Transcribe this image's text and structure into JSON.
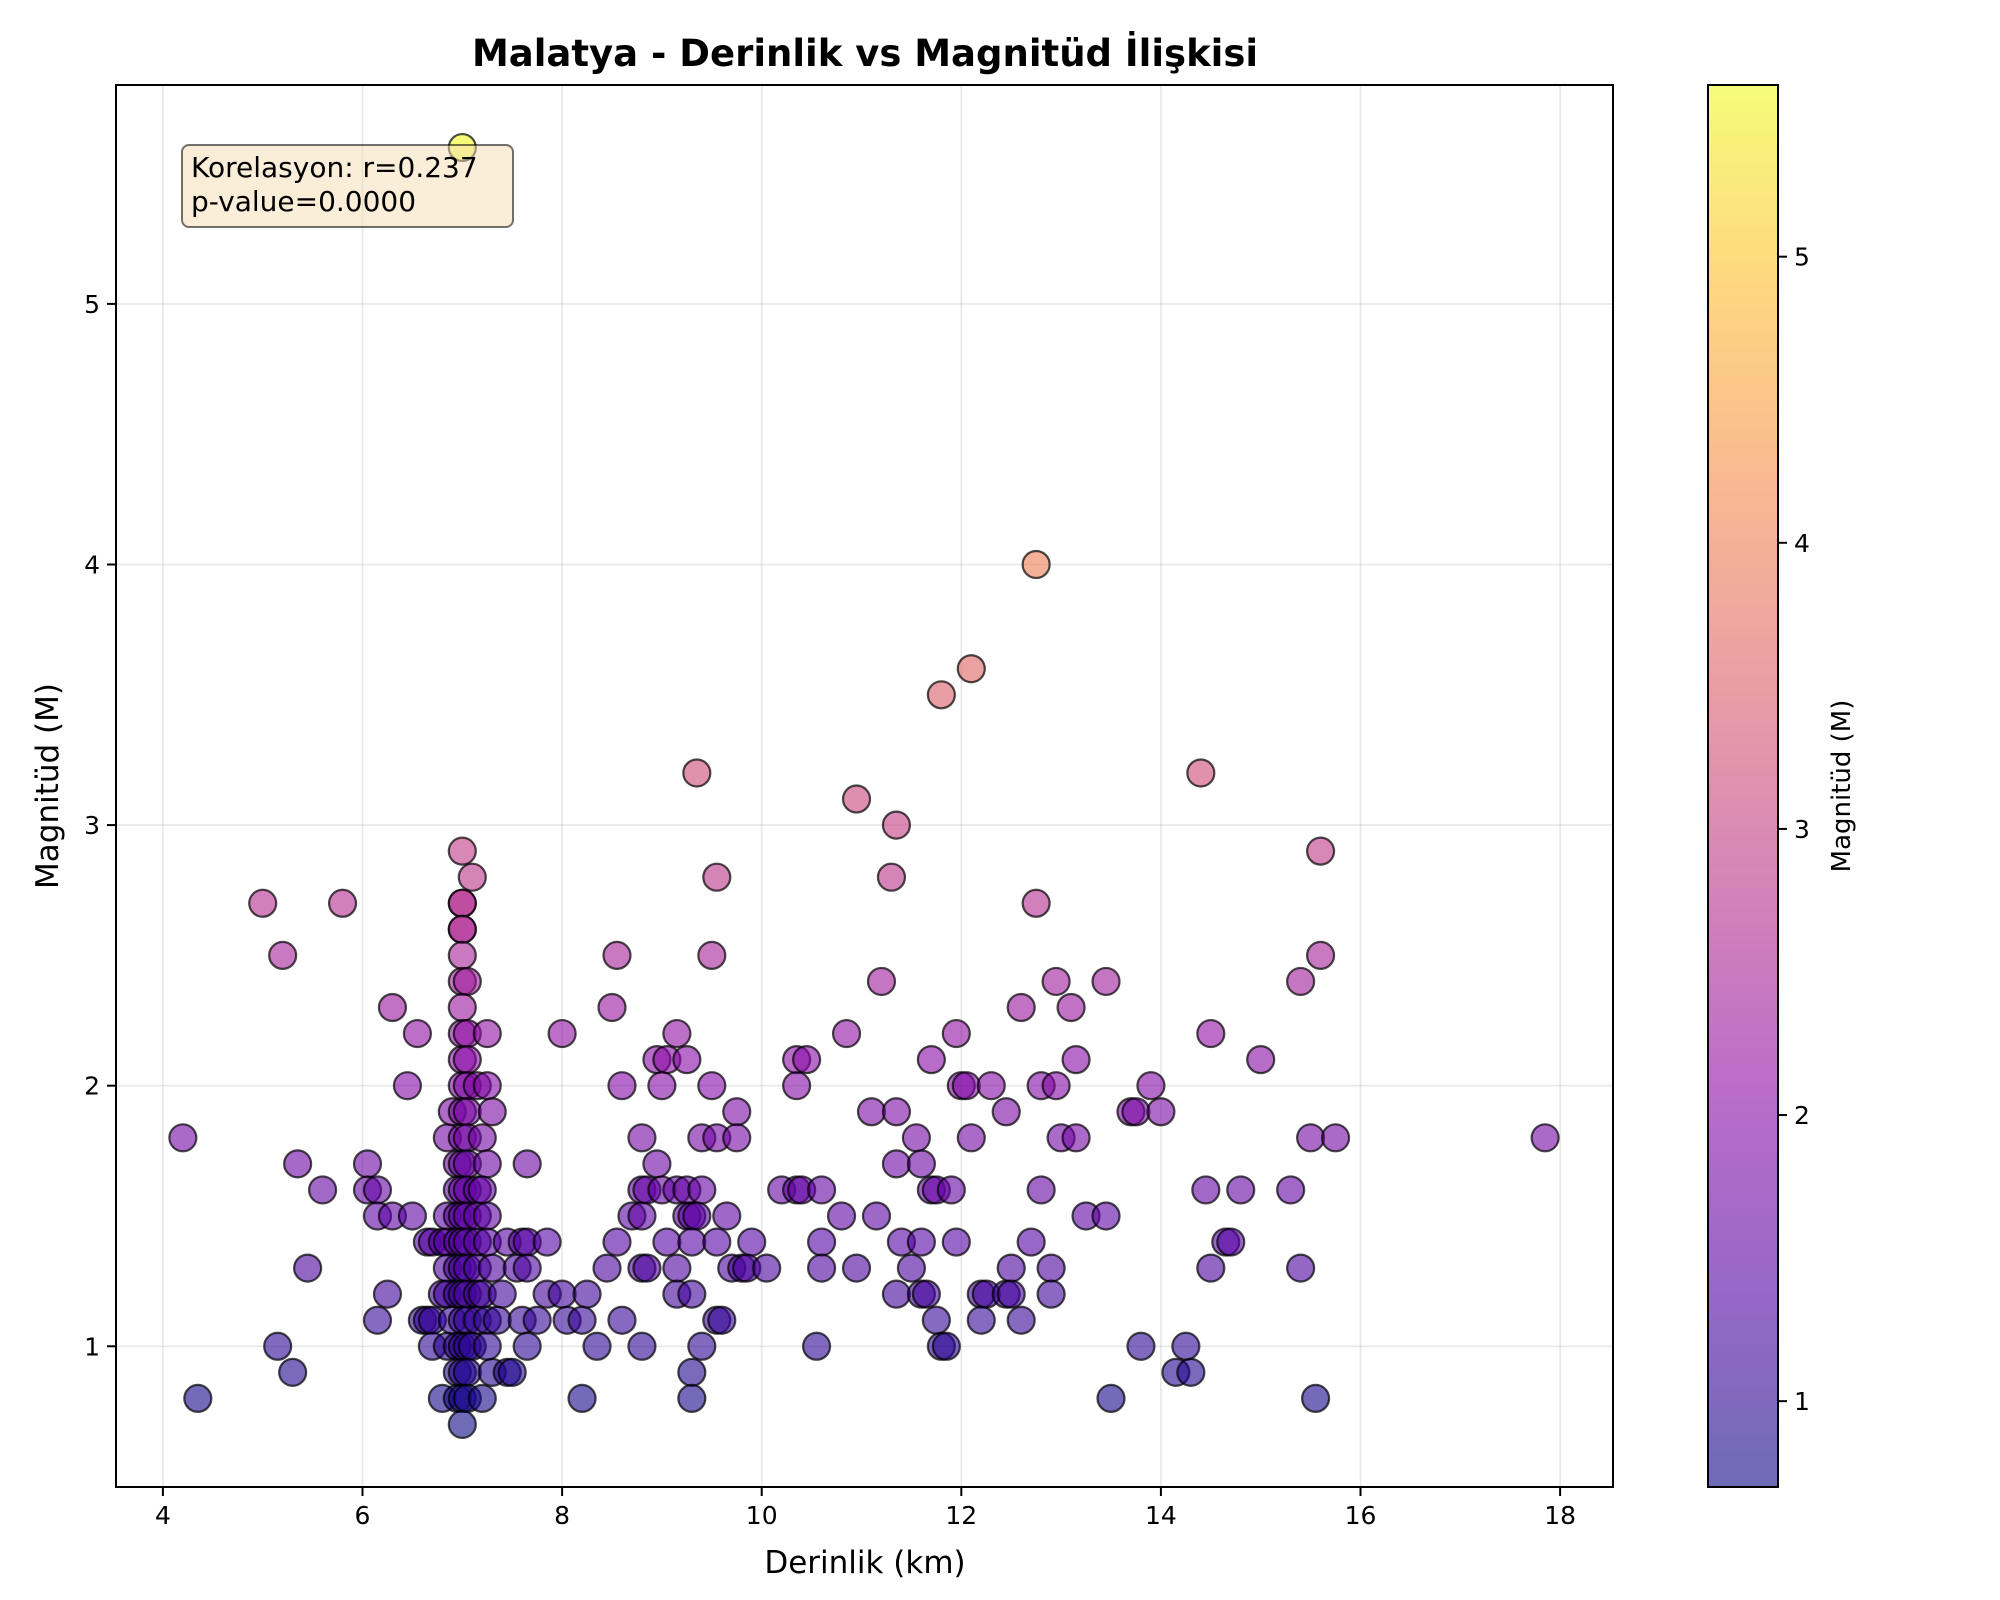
{
  "chart_data": {
    "type": "scatter",
    "title": "Malatya - Derinlik vs Magnitüd İlişkisi",
    "xlabel": "Derinlik (km)",
    "ylabel": "Magnitüd (M)",
    "xlim": [
      3.53,
      18.53
    ],
    "ylim": [
      0.46,
      5.84
    ],
    "xticks": [
      4,
      6,
      8,
      10,
      12,
      14,
      16,
      18
    ],
    "yticks": [
      1,
      2,
      3,
      4,
      5
    ],
    "grid": true,
    "colormap": "plasma",
    "color_by": "magnitude",
    "point_alpha": 0.6,
    "colorbar": {
      "label": "Magnitüd (M)",
      "range": [
        0.7,
        5.6
      ],
      "ticks": [
        1,
        2,
        3,
        4,
        5
      ]
    },
    "annotation": {
      "line1": "Korelasyon: r=0.237",
      "line2": "p-value=0.0000"
    },
    "points": [
      [
        7.0,
        5.6
      ],
      [
        12.75,
        4.0
      ],
      [
        12.1,
        3.6
      ],
      [
        11.8,
        3.5
      ],
      [
        9.35,
        3.2
      ],
      [
        14.4,
        3.2
      ],
      [
        10.95,
        3.1
      ],
      [
        11.35,
        3.0
      ],
      [
        7.0,
        2.9
      ],
      [
        15.6,
        2.9
      ],
      [
        7.1,
        2.8
      ],
      [
        9.55,
        2.8
      ],
      [
        11.3,
        2.8
      ],
      [
        5.0,
        2.7
      ],
      [
        5.8,
        2.7
      ],
      [
        7.0,
        2.7
      ],
      [
        7.0,
        2.7
      ],
      [
        12.75,
        2.7
      ],
      [
        7.0,
        2.6
      ],
      [
        7.0,
        2.6
      ],
      [
        5.2,
        2.5
      ],
      [
        7.0,
        2.5
      ],
      [
        8.55,
        2.5
      ],
      [
        9.5,
        2.5
      ],
      [
        15.6,
        2.5
      ],
      [
        7.0,
        2.4
      ],
      [
        7.05,
        2.4
      ],
      [
        11.2,
        2.4
      ],
      [
        12.95,
        2.4
      ],
      [
        13.45,
        2.4
      ],
      [
        15.4,
        2.4
      ],
      [
        6.3,
        2.3
      ],
      [
        7.0,
        2.3
      ],
      [
        8.5,
        2.3
      ],
      [
        12.6,
        2.3
      ],
      [
        13.1,
        2.3
      ],
      [
        6.55,
        2.2
      ],
      [
        7.0,
        2.2
      ],
      [
        7.05,
        2.2
      ],
      [
        7.25,
        2.2
      ],
      [
        8.0,
        2.2
      ],
      [
        9.15,
        2.2
      ],
      [
        10.85,
        2.2
      ],
      [
        11.95,
        2.2
      ],
      [
        14.5,
        2.2
      ],
      [
        7.0,
        2.1
      ],
      [
        7.05,
        2.1
      ],
      [
        8.95,
        2.1
      ],
      [
        9.05,
        2.1
      ],
      [
        9.25,
        2.1
      ],
      [
        10.35,
        2.1
      ],
      [
        10.45,
        2.1
      ],
      [
        11.7,
        2.1
      ],
      [
        13.15,
        2.1
      ],
      [
        15.0,
        2.1
      ],
      [
        6.45,
        2.0
      ],
      [
        7.0,
        2.0
      ],
      [
        7.05,
        2.0
      ],
      [
        7.15,
        2.0
      ],
      [
        7.25,
        2.0
      ],
      [
        8.6,
        2.0
      ],
      [
        9.0,
        2.0
      ],
      [
        9.5,
        2.0
      ],
      [
        10.35,
        2.0
      ],
      [
        12.0,
        2.0
      ],
      [
        12.05,
        2.0
      ],
      [
        12.3,
        2.0
      ],
      [
        12.8,
        2.0
      ],
      [
        12.95,
        2.0
      ],
      [
        13.9,
        2.0
      ],
      [
        6.9,
        1.9
      ],
      [
        7.0,
        1.9
      ],
      [
        7.05,
        1.9
      ],
      [
        7.3,
        1.9
      ],
      [
        9.75,
        1.9
      ],
      [
        11.1,
        1.9
      ],
      [
        11.35,
        1.9
      ],
      [
        12.45,
        1.9
      ],
      [
        13.7,
        1.9
      ],
      [
        13.75,
        1.9
      ],
      [
        14.0,
        1.9
      ],
      [
        4.2,
        1.8
      ],
      [
        6.85,
        1.8
      ],
      [
        7.0,
        1.8
      ],
      [
        7.05,
        1.8
      ],
      [
        7.2,
        1.8
      ],
      [
        8.8,
        1.8
      ],
      [
        9.4,
        1.8
      ],
      [
        9.55,
        1.8
      ],
      [
        9.75,
        1.8
      ],
      [
        11.55,
        1.8
      ],
      [
        12.1,
        1.8
      ],
      [
        13.0,
        1.8
      ],
      [
        13.15,
        1.8
      ],
      [
        15.5,
        1.8
      ],
      [
        15.75,
        1.8
      ],
      [
        17.85,
        1.8
      ],
      [
        5.35,
        1.7
      ],
      [
        6.05,
        1.7
      ],
      [
        6.95,
        1.7
      ],
      [
        7.0,
        1.7
      ],
      [
        7.05,
        1.7
      ],
      [
        7.25,
        1.7
      ],
      [
        7.65,
        1.7
      ],
      [
        8.95,
        1.7
      ],
      [
        11.35,
        1.7
      ],
      [
        11.6,
        1.7
      ],
      [
        5.6,
        1.6
      ],
      [
        6.05,
        1.6
      ],
      [
        6.15,
        1.6
      ],
      [
        6.95,
        1.6
      ],
      [
        7.0,
        1.6
      ],
      [
        7.05,
        1.6
      ],
      [
        7.15,
        1.6
      ],
      [
        7.2,
        1.6
      ],
      [
        8.8,
        1.6
      ],
      [
        8.85,
        1.6
      ],
      [
        9.0,
        1.6
      ],
      [
        9.15,
        1.6
      ],
      [
        9.25,
        1.6
      ],
      [
        9.4,
        1.6
      ],
      [
        10.2,
        1.6
      ],
      [
        10.35,
        1.6
      ],
      [
        10.4,
        1.6
      ],
      [
        10.6,
        1.6
      ],
      [
        11.7,
        1.6
      ],
      [
        11.75,
        1.6
      ],
      [
        11.9,
        1.6
      ],
      [
        12.8,
        1.6
      ],
      [
        14.45,
        1.6
      ],
      [
        14.8,
        1.6
      ],
      [
        15.3,
        1.6
      ],
      [
        6.15,
        1.5
      ],
      [
        6.3,
        1.5
      ],
      [
        6.5,
        1.5
      ],
      [
        6.85,
        1.5
      ],
      [
        6.95,
        1.5
      ],
      [
        7.0,
        1.5
      ],
      [
        7.05,
        1.5
      ],
      [
        7.15,
        1.5
      ],
      [
        7.25,
        1.5
      ],
      [
        8.7,
        1.5
      ],
      [
        8.8,
        1.5
      ],
      [
        9.25,
        1.5
      ],
      [
        9.3,
        1.5
      ],
      [
        9.35,
        1.5
      ],
      [
        9.65,
        1.5
      ],
      [
        10.8,
        1.5
      ],
      [
        11.15,
        1.5
      ],
      [
        13.25,
        1.5
      ],
      [
        13.45,
        1.5
      ],
      [
        6.65,
        1.4
      ],
      [
        6.7,
        1.4
      ],
      [
        6.8,
        1.4
      ],
      [
        6.85,
        1.4
      ],
      [
        6.95,
        1.4
      ],
      [
        7.0,
        1.4
      ],
      [
        7.05,
        1.4
      ],
      [
        7.15,
        1.4
      ],
      [
        7.25,
        1.4
      ],
      [
        7.45,
        1.4
      ],
      [
        7.6,
        1.4
      ],
      [
        7.65,
        1.4
      ],
      [
        7.85,
        1.4
      ],
      [
        8.55,
        1.4
      ],
      [
        9.05,
        1.4
      ],
      [
        9.3,
        1.4
      ],
      [
        9.55,
        1.4
      ],
      [
        9.9,
        1.4
      ],
      [
        10.6,
        1.4
      ],
      [
        11.4,
        1.4
      ],
      [
        11.6,
        1.4
      ],
      [
        11.95,
        1.4
      ],
      [
        12.7,
        1.4
      ],
      [
        14.65,
        1.4
      ],
      [
        14.7,
        1.4
      ],
      [
        5.45,
        1.3
      ],
      [
        6.85,
        1.3
      ],
      [
        6.95,
        1.3
      ],
      [
        7.0,
        1.3
      ],
      [
        7.05,
        1.3
      ],
      [
        7.15,
        1.3
      ],
      [
        7.3,
        1.3
      ],
      [
        7.55,
        1.3
      ],
      [
        7.65,
        1.3
      ],
      [
        8.45,
        1.3
      ],
      [
        8.8,
        1.3
      ],
      [
        8.85,
        1.3
      ],
      [
        9.15,
        1.3
      ],
      [
        9.7,
        1.3
      ],
      [
        9.8,
        1.3
      ],
      [
        9.85,
        1.3
      ],
      [
        10.05,
        1.3
      ],
      [
        10.6,
        1.3
      ],
      [
        10.95,
        1.3
      ],
      [
        11.5,
        1.3
      ],
      [
        12.5,
        1.3
      ],
      [
        12.9,
        1.3
      ],
      [
        14.5,
        1.3
      ],
      [
        15.4,
        1.3
      ],
      [
        6.25,
        1.2
      ],
      [
        6.8,
        1.2
      ],
      [
        6.85,
        1.2
      ],
      [
        6.95,
        1.2
      ],
      [
        7.0,
        1.2
      ],
      [
        7.05,
        1.2
      ],
      [
        7.15,
        1.2
      ],
      [
        7.2,
        1.2
      ],
      [
        7.4,
        1.2
      ],
      [
        7.85,
        1.2
      ],
      [
        8.0,
        1.2
      ],
      [
        8.25,
        1.2
      ],
      [
        9.15,
        1.2
      ],
      [
        9.3,
        1.2
      ],
      [
        11.35,
        1.2
      ],
      [
        11.6,
        1.2
      ],
      [
        11.65,
        1.2
      ],
      [
        12.2,
        1.2
      ],
      [
        12.25,
        1.2
      ],
      [
        12.45,
        1.2
      ],
      [
        12.5,
        1.2
      ],
      [
        12.9,
        1.2
      ],
      [
        6.15,
        1.1
      ],
      [
        6.6,
        1.1
      ],
      [
        6.65,
        1.1
      ],
      [
        6.7,
        1.1
      ],
      [
        6.9,
        1.1
      ],
      [
        7.0,
        1.1
      ],
      [
        7.05,
        1.1
      ],
      [
        7.15,
        1.1
      ],
      [
        7.25,
        1.1
      ],
      [
        7.35,
        1.1
      ],
      [
        7.6,
        1.1
      ],
      [
        7.75,
        1.1
      ],
      [
        8.05,
        1.1
      ],
      [
        8.2,
        1.1
      ],
      [
        8.6,
        1.1
      ],
      [
        9.55,
        1.1
      ],
      [
        9.6,
        1.1
      ],
      [
        11.75,
        1.1
      ],
      [
        12.2,
        1.1
      ],
      [
        12.6,
        1.1
      ],
      [
        5.15,
        1.0
      ],
      [
        6.7,
        1.0
      ],
      [
        6.85,
        1.0
      ],
      [
        6.95,
        1.0
      ],
      [
        7.0,
        1.0
      ],
      [
        7.05,
        1.0
      ],
      [
        7.1,
        1.0
      ],
      [
        7.25,
        1.0
      ],
      [
        7.65,
        1.0
      ],
      [
        8.35,
        1.0
      ],
      [
        8.8,
        1.0
      ],
      [
        9.4,
        1.0
      ],
      [
        10.55,
        1.0
      ],
      [
        11.8,
        1.0
      ],
      [
        11.85,
        1.0
      ],
      [
        13.8,
        1.0
      ],
      [
        14.25,
        1.0
      ],
      [
        5.3,
        0.9
      ],
      [
        6.95,
        0.9
      ],
      [
        7.0,
        0.9
      ],
      [
        7.05,
        0.9
      ],
      [
        7.3,
        0.9
      ],
      [
        7.45,
        0.9
      ],
      [
        7.5,
        0.9
      ],
      [
        9.3,
        0.9
      ],
      [
        14.15,
        0.9
      ],
      [
        14.3,
        0.9
      ],
      [
        4.35,
        0.8
      ],
      [
        6.8,
        0.8
      ],
      [
        6.95,
        0.8
      ],
      [
        7.0,
        0.8
      ],
      [
        7.05,
        0.8
      ],
      [
        7.2,
        0.8
      ],
      [
        8.2,
        0.8
      ],
      [
        9.3,
        0.8
      ],
      [
        13.5,
        0.8
      ],
      [
        15.55,
        0.8
      ],
      [
        7.0,
        0.7
      ]
    ]
  }
}
